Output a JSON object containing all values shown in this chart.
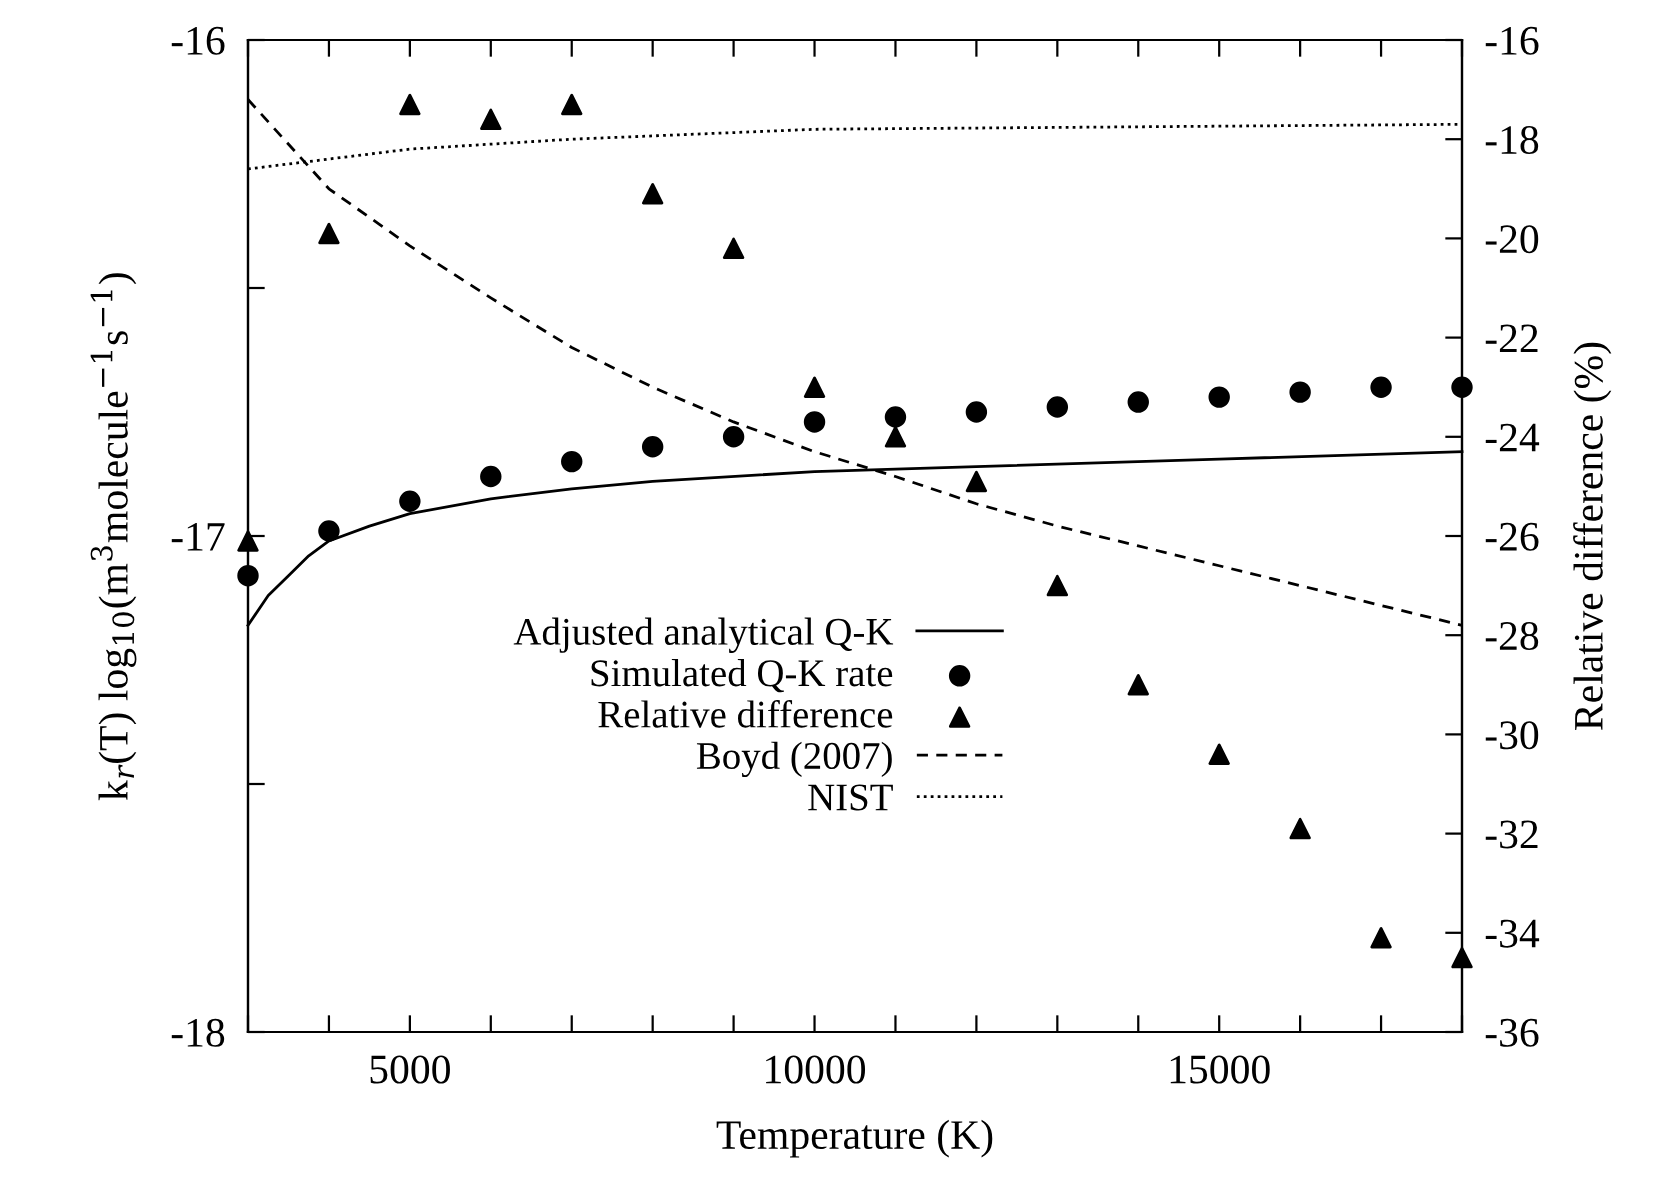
{
  "chart_data": {
    "type": "line",
    "xlabel": "Temperature (K)",
    "ylabel": "k$_{r}$(T) log$_{10}$(m$^{3}$molecule$^{−1}$s$^{−1}$)",
    "y2label": "Relative difference (%)",
    "xlim": [
      3000,
      18000
    ],
    "xticks": [
      {
        "value": 3000,
        "label": null
      },
      {
        "value": 4000,
        "label": null
      },
      5000,
      {
        "value": 6000,
        "label": null
      },
      {
        "value": 7000,
        "label": null
      },
      {
        "value": 8000,
        "label": null
      },
      {
        "value": 9000,
        "label": null
      },
      10000,
      {
        "value": 11000,
        "label": null
      },
      {
        "value": 12000,
        "label": null
      },
      {
        "value": 13000,
        "label": null
      },
      {
        "value": 14000,
        "label": null
      },
      15000,
      {
        "value": 16000,
        "label": null
      },
      {
        "value": 17000,
        "label": null
      },
      {
        "value": 18000,
        "label": null
      }
    ],
    "ylim": [
      -18,
      -16
    ],
    "yticks": [
      -18,
      {
        "value": -17.5,
        "label": null
      },
      -17,
      {
        "value": -16.5,
        "label": null
      },
      -16
    ],
    "y2lim": [
      -36,
      -16
    ],
    "y2ticks": [
      -36,
      -34,
      -32,
      -30,
      -28,
      -26,
      -24,
      -22,
      -20,
      -18,
      -16
    ],
    "grid": false,
    "legend": "bottom",
    "series": [
      {
        "name": "Adjusted analytical Q-K",
        "color": "#000000",
        "line_style": "solid",
        "marker": "none",
        "x": [
          3000,
          3250,
          3500,
          3750,
          4000,
          4500,
          5000,
          6000,
          7000,
          8000,
          10000,
          12000,
          15000,
          18000
        ],
        "values": [
          -17.18,
          -17.12,
          -17.08,
          -17.04,
          -17.01,
          -16.98,
          -16.955,
          -16.925,
          -16.905,
          -16.89,
          -16.87,
          -16.86,
          -16.845,
          -16.83
        ]
      },
      {
        "name": "Simulated Q-K rate",
        "type": "scatter",
        "color": "#000000",
        "marker": "circle",
        "x": [
          3000,
          4000,
          5000,
          6000,
          7000,
          8000,
          9000,
          10000,
          11000,
          12000,
          13000,
          14000,
          15000,
          16000,
          17000,
          18000
        ],
        "values": [
          -17.08,
          -16.99,
          -16.93,
          -16.88,
          -16.85,
          -16.82,
          -16.8,
          -16.77,
          -16.76,
          -16.75,
          -16.74,
          -16.73,
          -16.72,
          -16.71,
          -16.7,
          -16.7
        ]
      },
      {
        "name": "Relative difference",
        "type": "scatter",
        "color": "#000000",
        "marker": "triangle",
        "axis": "y2",
        "x": [
          3000,
          4000,
          5000,
          6000,
          7000,
          8000,
          9000,
          10000,
          11000,
          12000,
          13000,
          14000,
          15000,
          16000,
          17000,
          18000
        ],
        "values": [
          -26.1,
          -19.9,
          -17.3,
          -17.6,
          -17.3,
          -19.1,
          -20.2,
          -23.0,
          -24.0,
          -24.9,
          -27.0,
          -29.0,
          -30.4,
          -31.9,
          -34.1,
          -34.5
        ]
      },
      {
        "name": "Boyd (2007)",
        "color": "#000000",
        "line_style": "dashed",
        "marker": "none",
        "x": [
          3000,
          4000,
          5000,
          6000,
          7000,
          8000,
          9000,
          10000,
          11000,
          12000,
          13000,
          14000,
          15000,
          16000,
          17000,
          18000
        ],
        "values": [
          -16.12,
          -16.3,
          -16.415,
          -16.52,
          -16.62,
          -16.7,
          -16.77,
          -16.83,
          -16.88,
          -16.935,
          -16.98,
          -17.02,
          -17.06,
          -17.1,
          -17.14,
          -17.18
        ]
      },
      {
        "name": "NIST",
        "color": "#000000",
        "line_style": "dotted",
        "marker": "none",
        "x": [
          3000,
          4000,
          5000,
          7000,
          10000,
          14000,
          18000
        ],
        "values": [
          -16.26,
          -16.24,
          -16.22,
          -16.2,
          -16.18,
          -16.175,
          -16.17
        ]
      }
    ]
  }
}
